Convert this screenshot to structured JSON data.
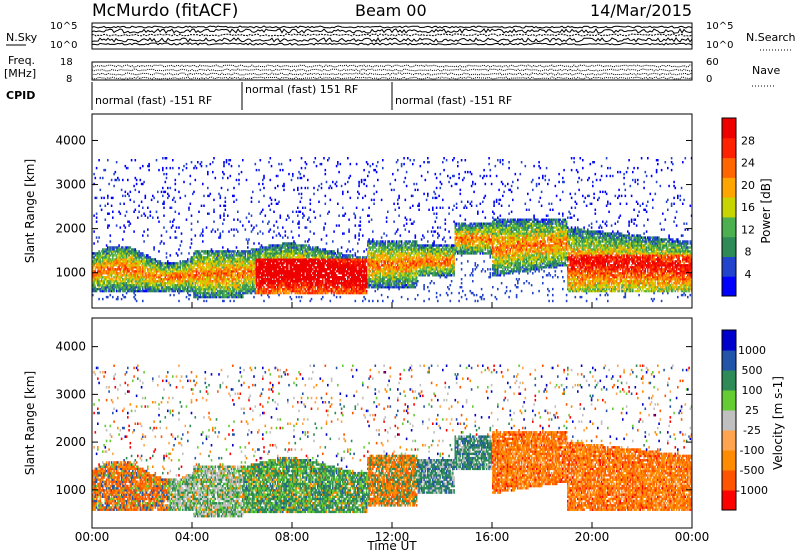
{
  "header": {
    "station": "McMurdo (fitACF)",
    "beam": "Beam 00",
    "date": "14/Mar/2015"
  },
  "top_panels": {
    "nsky_label": "N.Sky",
    "nsearch_label": "N.Search",
    "freq_label_line1": "Freq.",
    "freq_label_line2": "[MHz]",
    "nave_label": "Nave",
    "cpid_label": "CPID",
    "nsky_ticks": [
      "10^5",
      "10^0"
    ],
    "nsearch_ticks": [
      "10^5",
      "10^0"
    ],
    "freq_ticks": [
      "18",
      "8"
    ],
    "nave_ticks": [
      "60",
      "0"
    ],
    "cpid_segments": [
      {
        "label": "normal (fast) -151 RF",
        "start": 0,
        "end": 6
      },
      {
        "label": "normal (fast) 151 RF",
        "start": 6,
        "end": 12
      },
      {
        "label": "normal (fast) -151 RF",
        "start": 12,
        "end": 24
      }
    ]
  },
  "colors": {
    "power": [
      "#0000ff",
      "#2244cc",
      "#2e8b57",
      "#4caf50",
      "#c8d400",
      "#ffa500",
      "#ff6600",
      "#ff2200",
      "#ee0000"
    ],
    "velocity": [
      "#ff0000",
      "#ff5500",
      "#ff8c00",
      "#ffa54f",
      "#c0c0c0",
      "#66cc33",
      "#2e8b57",
      "#2255aa",
      "#0000cc"
    ],
    "gray_gap": "#c8c8c8"
  },
  "chart_data": [
    {
      "type": "heatmap",
      "quantity": "Power",
      "ylabel": "Slant Range [km]",
      "xlabel": "Time UT",
      "y_ticks": [
        1000,
        2000,
        3000,
        4000
      ],
      "ylim": [
        200,
        4600
      ],
      "x_ticks": [
        "00:00",
        "04:00",
        "08:00",
        "12:00",
        "16:00",
        "20:00",
        "00:00"
      ],
      "xlim_hours": [
        0,
        24
      ],
      "colorbar": {
        "label": "Power [dB]",
        "ticks": [
          4,
          8,
          12,
          16,
          20,
          24,
          28
        ]
      }
    },
    {
      "type": "heatmap",
      "quantity": "Velocity",
      "ylabel": "Slant Range [km]",
      "xlabel": "Time UT",
      "y_ticks": [
        1000,
        2000,
        3000,
        4000
      ],
      "ylim": [
        200,
        4600
      ],
      "x_ticks": [
        "00:00",
        "04:00",
        "08:00",
        "12:00",
        "16:00",
        "20:00",
        "00:00"
      ],
      "xlim_hours": [
        0,
        24
      ],
      "colorbar": {
        "label": "Velocity [m s-1]",
        "ticks": [
          "1000",
          "500",
          "100",
          "25",
          "-25",
          "-100",
          "-500",
          "-1000"
        ]
      }
    }
  ]
}
